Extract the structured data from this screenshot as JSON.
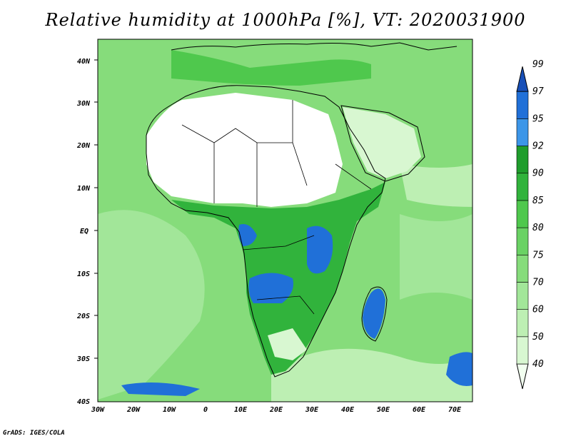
{
  "title": "Relative humidity at 1000hPa [%], VT: 2020031900",
  "credit": "GrADS: IGES/COLA",
  "lat_labels": [
    "40N",
    "30N",
    "20N",
    "10N",
    "EQ",
    "10S",
    "20S",
    "30S",
    "40S"
  ],
  "lon_labels": [
    "30W",
    "20W",
    "10W",
    "0",
    "10E",
    "20E",
    "30E",
    "40E",
    "50E",
    "60E",
    "70E"
  ],
  "colorbar": {
    "levels": [
      "40",
      "50",
      "60",
      "70",
      "75",
      "80",
      "85",
      "90",
      "92",
      "95",
      "97",
      "99"
    ],
    "colors": [
      "#f2fff0",
      "#d8f7d1",
      "#bdefb3",
      "#a2e699",
      "#86dc7b",
      "#6ad264",
      "#4fc84d",
      "#31b33c",
      "#1f9d2c",
      "#3c96e8",
      "#2070d8",
      "#1850b8"
    ]
  },
  "map_colors": {
    "land_dry": "#ffffff",
    "ocean_base": "#86dc7b",
    "humid": "#31b33c",
    "very_humid": "#2070d8",
    "coast": "#000000"
  }
}
